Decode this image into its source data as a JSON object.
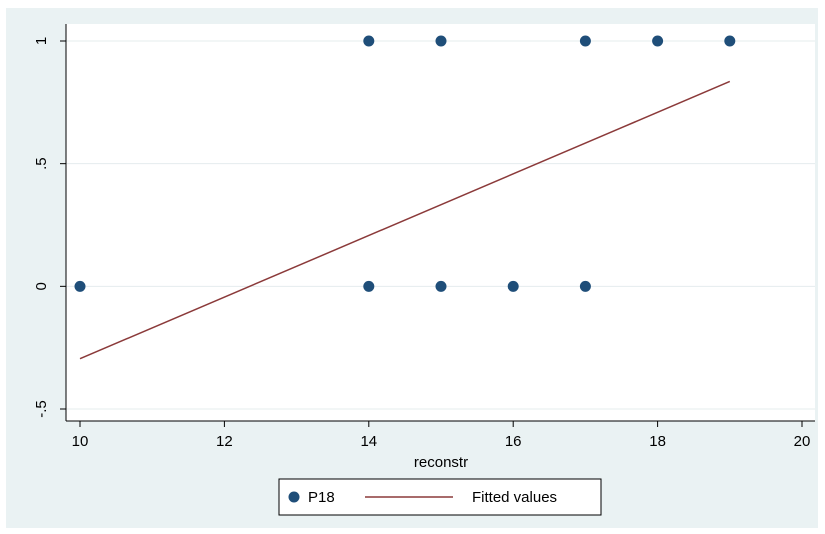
{
  "chart_data": {
    "type": "scatter",
    "xlabel": "reconstr",
    "ylabel": "",
    "xlim": [
      10,
      20
    ],
    "ylim": [
      -0.5,
      1
    ],
    "x_ticks": [
      10,
      12,
      14,
      16,
      18,
      20
    ],
    "x_tick_labels": [
      "10",
      "12",
      "14",
      "16",
      "18",
      "20"
    ],
    "y_ticks": [
      -0.5,
      0,
      0.5,
      1
    ],
    "y_tick_labels": [
      "-.5",
      "0",
      ".5",
      "1"
    ],
    "grid": "horizontal",
    "legend_position": "bottom",
    "series": [
      {
        "name": "P18",
        "type": "scatter",
        "color": "#1f4e79",
        "points": [
          {
            "x": 10,
            "y": 0
          },
          {
            "x": 14,
            "y": 0
          },
          {
            "x": 15,
            "y": 0
          },
          {
            "x": 16,
            "y": 0
          },
          {
            "x": 17,
            "y": 0
          },
          {
            "x": 14,
            "y": 1
          },
          {
            "x": 15,
            "y": 1
          },
          {
            "x": 17,
            "y": 1
          },
          {
            "x": 18,
            "y": 1
          },
          {
            "x": 19,
            "y": 1
          }
        ]
      },
      {
        "name": "Fitted values",
        "type": "line",
        "color": "#8b3a3a",
        "points": [
          {
            "x": 10,
            "y": -0.295
          },
          {
            "x": 19,
            "y": 0.835
          }
        ]
      }
    ]
  }
}
